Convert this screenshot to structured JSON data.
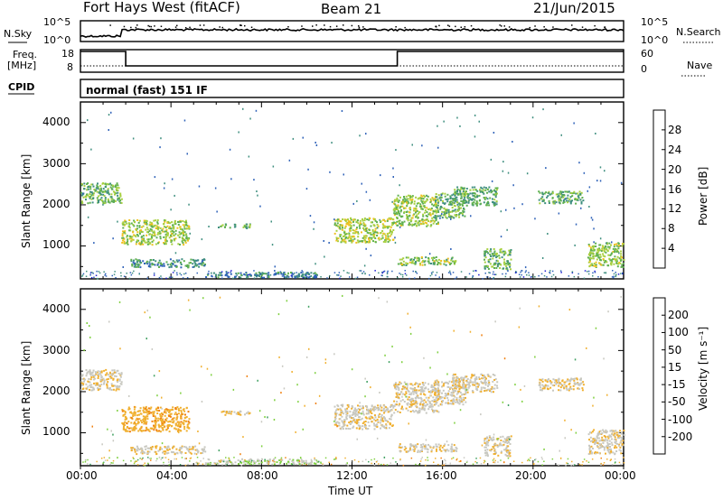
{
  "header": {
    "station_title": "Fort Hays West (fitACF)",
    "beam_label": "Beam 21",
    "date_label": "21/Jun/2015"
  },
  "top_panel": {
    "left_label": "N.Sky",
    "right_label": "N.Search",
    "left_ticks": [
      "10^5",
      "10^0"
    ],
    "right_ticks": [
      "10^5",
      "10^0"
    ]
  },
  "freq_panel": {
    "left_label_line1": "Freq.",
    "left_label_line2": "[MHz]",
    "right_label": "Nave",
    "left_ticks": [
      "18",
      "8"
    ],
    "right_ticks": [
      "60",
      "0"
    ]
  },
  "cpid_panel": {
    "label": "CPID",
    "mode_text": "normal (fast) 151 IF"
  },
  "power_panel": {
    "ylabel": "Slant Range [km]",
    "yticks": [
      "4000",
      "3000",
      "2000",
      "1000"
    ],
    "colorbar_label": "Power [dB]",
    "colorbar_ticks": [
      "28",
      "24",
      "20",
      "16",
      "12",
      "8",
      "4"
    ],
    "colors": [
      "#1f1fd0",
      "#2f62b8",
      "#3f8f7f",
      "#5fb04f",
      "#a8d040",
      "#f0c020",
      "#f08010",
      "#e02010"
    ]
  },
  "velocity_panel": {
    "ylabel": "Slant Range [km]",
    "yticks": [
      "4000",
      "3000",
      "2000",
      "1000"
    ],
    "colorbar_label": "Velocity [m s⁻¹]",
    "colorbar_ticks": [
      "200",
      "100",
      "50",
      "15",
      "-15",
      "-50",
      "-100",
      "-200"
    ],
    "colors": [
      "#2030b0",
      "#3f7fb0",
      "#3fa060",
      "#7fd040",
      "#c8c8c0",
      "#f0b030",
      "#f08010",
      "#e03010",
      "#d01010"
    ]
  },
  "x_axis": {
    "xlabel": "Time UT",
    "ticks": [
      "00:00",
      "04:00",
      "08:00",
      "12:00",
      "16:00",
      "20:00",
      "00:00"
    ]
  },
  "chart_data": {
    "type": "heatmap",
    "xlabel": "Time UT",
    "ylabel": "Slant Range [km]",
    "x_range_hours": [
      0,
      24
    ],
    "y_range_km": [
      200,
      4500
    ],
    "frequency_mhz_steps": [
      {
        "from_h": 0,
        "to_h": 2.0,
        "freq": 18
      },
      {
        "from_h": 2.0,
        "to_h": 14.0,
        "freq": 8
      },
      {
        "from_h": 14.0,
        "to_h": 24,
        "freq": 18
      }
    ],
    "echo_regions": [
      {
        "t0": 0.0,
        "t1": 1.8,
        "r0": 2050,
        "r1": 2550,
        "power_db": 14,
        "velocity": -10
      },
      {
        "t0": 1.8,
        "t1": 4.8,
        "r0": 1050,
        "r1": 1650,
        "power_db": 17,
        "velocity": -40
      },
      {
        "t0": 2.2,
        "t1": 5.5,
        "r0": 500,
        "r1": 700,
        "power_db": 10,
        "velocity": -10
      },
      {
        "t0": 5.5,
        "t1": 10.5,
        "r0": 250,
        "r1": 380,
        "power_db": 9,
        "velocity": 10
      },
      {
        "t0": 6.0,
        "t1": 7.5,
        "r0": 1450,
        "r1": 1550,
        "power_db": 12,
        "velocity": -10
      },
      {
        "t0": 11.2,
        "t1": 13.8,
        "r0": 1100,
        "r1": 1700,
        "power_db": 18,
        "velocity": -10
      },
      {
        "t0": 13.8,
        "t1": 15.8,
        "r0": 1500,
        "r1": 2250,
        "power_db": 17,
        "velocity": -10
      },
      {
        "t0": 14.0,
        "t1": 16.6,
        "r0": 550,
        "r1": 750,
        "power_db": 16,
        "velocity": -10
      },
      {
        "t0": 15.6,
        "t1": 17.0,
        "r0": 1700,
        "r1": 2300,
        "power_db": 14,
        "velocity": -10
      },
      {
        "t0": 16.4,
        "t1": 18.4,
        "r0": 2000,
        "r1": 2450,
        "power_db": 13,
        "velocity": -10
      },
      {
        "t0": 17.8,
        "t1": 19.0,
        "r0": 450,
        "r1": 950,
        "power_db": 14,
        "velocity": -10
      },
      {
        "t0": 20.2,
        "t1": 22.2,
        "r0": 2050,
        "r1": 2350,
        "power_db": 13,
        "velocity": -10
      },
      {
        "t0": 22.4,
        "t1": 24.0,
        "r0": 500,
        "r1": 1100,
        "power_db": 17,
        "velocity": -10
      }
    ]
  }
}
